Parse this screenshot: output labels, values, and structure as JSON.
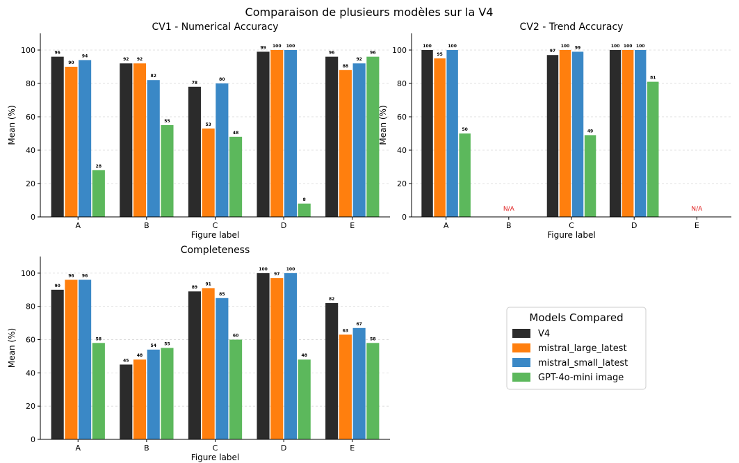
{
  "figure": {
    "title": "Comparaison de plusieurs modèles sur la V4"
  },
  "legend": {
    "title": "Models Compared",
    "placement": "center-right"
  },
  "series_colors": [
    "#2b2b2b",
    "#ff7f0e",
    "#3a88c6",
    "#5cb85c"
  ],
  "chart_data": [
    {
      "type": "bar",
      "title": "CV1 - Numerical Accuracy",
      "xlabel": "Figure label",
      "ylabel": "Mean (%)",
      "ylim": [
        0,
        110
      ],
      "yticks": [
        0,
        20,
        40,
        60,
        80,
        100
      ],
      "grid": "horizontal dashed",
      "categories": [
        "A",
        "B",
        "C",
        "D",
        "E"
      ],
      "series": [
        {
          "name": "V4",
          "values": [
            96,
            92,
            78,
            99,
            96
          ]
        },
        {
          "name": "mistral_large_latest",
          "values": [
            90,
            92,
            53,
            100,
            88
          ]
        },
        {
          "name": "mistral_small_latest",
          "values": [
            94,
            82,
            80,
            100,
            92
          ]
        },
        {
          "name": "GPT-4o-mini image",
          "values": [
            28,
            55,
            48,
            8,
            96
          ]
        }
      ]
    },
    {
      "type": "bar",
      "title": "CV2 - Trend Accuracy",
      "xlabel": "Figure label",
      "ylabel": "Mean (%)",
      "ylim": [
        0,
        110
      ],
      "yticks": [
        0,
        20,
        40,
        60,
        80,
        100
      ],
      "grid": "horizontal dashed",
      "categories": [
        "A",
        "B",
        "C",
        "D",
        "E"
      ],
      "na_text": "N/A",
      "series": [
        {
          "name": "V4",
          "values": [
            100,
            null,
            97,
            100,
            null
          ]
        },
        {
          "name": "mistral_large_latest",
          "values": [
            95,
            null,
            100,
            100,
            null
          ]
        },
        {
          "name": "mistral_small_latest",
          "values": [
            100,
            null,
            99,
            100,
            null
          ]
        },
        {
          "name": "GPT-4o-mini image",
          "values": [
            50,
            null,
            49,
            81,
            null
          ]
        }
      ]
    },
    {
      "type": "bar",
      "title": "Completeness",
      "xlabel": "Figure label",
      "ylabel": "Mean (%)",
      "ylim": [
        0,
        110
      ],
      "yticks": [
        0,
        20,
        40,
        60,
        80,
        100
      ],
      "grid": "horizontal dashed",
      "categories": [
        "A",
        "B",
        "C",
        "D",
        "E"
      ],
      "series": [
        {
          "name": "V4",
          "values": [
            90,
            45,
            89,
            100,
            82
          ]
        },
        {
          "name": "mistral_large_latest",
          "values": [
            96,
            48,
            91,
            97,
            63
          ]
        },
        {
          "name": "mistral_small_latest",
          "values": [
            96,
            54,
            85,
            100,
            67
          ]
        },
        {
          "name": "GPT-4o-mini image",
          "values": [
            58,
            55,
            60,
            48,
            58
          ]
        }
      ]
    }
  ]
}
